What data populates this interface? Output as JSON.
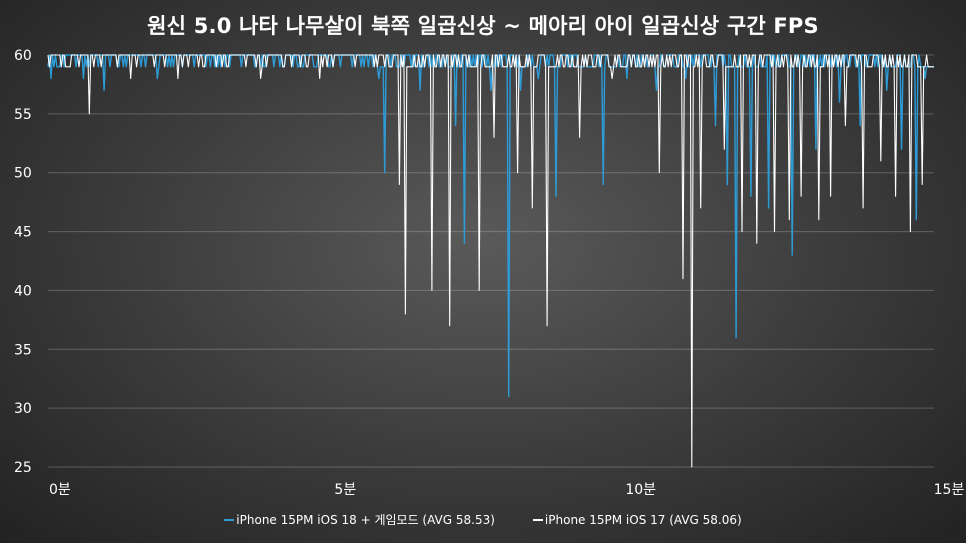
{
  "chart_data": {
    "type": "line",
    "title": "원신 5.0 나타 나무살이 북쪽 일곱신상 ~ 메아리 아이 일곱신상 구간 FPS",
    "xlabel": "",
    "ylabel": "",
    "xlim": [
      0,
      15
    ],
    "ylim": [
      25,
      60
    ],
    "x_ticks": [
      {
        "value": 0,
        "label": "0분"
      },
      {
        "value": 5,
        "label": "5분"
      },
      {
        "value": 10,
        "label": "10분"
      },
      {
        "value": 15,
        "label": "15분"
      }
    ],
    "y_ticks": [
      60,
      55,
      50,
      45,
      40,
      35,
      30,
      25
    ],
    "grid": "horizontal",
    "legend_position": "bottom",
    "series": [
      {
        "name": "iPhone 15PM iOS 18 + 게임모드 (AVG 58.53)",
        "color": "#2e9bd6",
        "baseline": 60,
        "sample_interval_min": 0.025,
        "dips": [
          {
            "x": 0.05,
            "y": 58
          },
          {
            "x": 0.1,
            "y": 59
          },
          {
            "x": 0.6,
            "y": 58
          },
          {
            "x": 0.95,
            "y": 57
          },
          {
            "x": 1.85,
            "y": 58
          },
          {
            "x": 2.75,
            "y": 59
          },
          {
            "x": 3.5,
            "y": 59
          },
          {
            "x": 4.5,
            "y": 59
          },
          {
            "x": 5.6,
            "y": 58
          },
          {
            "x": 5.7,
            "y": 50
          },
          {
            "x": 6.3,
            "y": 57
          },
          {
            "x": 6.9,
            "y": 54
          },
          {
            "x": 7.05,
            "y": 44
          },
          {
            "x": 7.5,
            "y": 57
          },
          {
            "x": 7.8,
            "y": 31
          },
          {
            "x": 8.0,
            "y": 57
          },
          {
            "x": 8.3,
            "y": 58
          },
          {
            "x": 8.6,
            "y": 48
          },
          {
            "x": 9.4,
            "y": 49
          },
          {
            "x": 9.8,
            "y": 58
          },
          {
            "x": 10.3,
            "y": 57
          },
          {
            "x": 10.8,
            "y": 58
          },
          {
            "x": 11.3,
            "y": 54
          },
          {
            "x": 11.5,
            "y": 49
          },
          {
            "x": 11.65,
            "y": 36
          },
          {
            "x": 11.9,
            "y": 48
          },
          {
            "x": 12.2,
            "y": 47
          },
          {
            "x": 12.6,
            "y": 43
          },
          {
            "x": 13.0,
            "y": 52
          },
          {
            "x": 13.4,
            "y": 56
          },
          {
            "x": 13.75,
            "y": 54
          },
          {
            "x": 14.2,
            "y": 57
          },
          {
            "x": 14.45,
            "y": 52
          },
          {
            "x": 14.7,
            "y": 46
          },
          {
            "x": 14.85,
            "y": 58
          }
        ]
      },
      {
        "name": "iPhone 15PM iOS 17 (AVG 58.06)",
        "color": "#ffffff",
        "baseline": 60,
        "sample_interval_min": 0.025,
        "dips": [
          {
            "x": 0.7,
            "y": 55
          },
          {
            "x": 1.4,
            "y": 58
          },
          {
            "x": 2.2,
            "y": 58
          },
          {
            "x": 3.6,
            "y": 58
          },
          {
            "x": 4.6,
            "y": 58
          },
          {
            "x": 5.95,
            "y": 49
          },
          {
            "x": 6.05,
            "y": 38
          },
          {
            "x": 6.5,
            "y": 40
          },
          {
            "x": 6.8,
            "y": 37
          },
          {
            "x": 7.3,
            "y": 40
          },
          {
            "x": 7.55,
            "y": 53
          },
          {
            "x": 7.95,
            "y": 50
          },
          {
            "x": 8.2,
            "y": 47
          },
          {
            "x": 8.45,
            "y": 37
          },
          {
            "x": 9.0,
            "y": 53
          },
          {
            "x": 9.55,
            "y": 58
          },
          {
            "x": 10.35,
            "y": 50
          },
          {
            "x": 10.75,
            "y": 41
          },
          {
            "x": 10.9,
            "y": 25
          },
          {
            "x": 11.05,
            "y": 47
          },
          {
            "x": 11.45,
            "y": 52
          },
          {
            "x": 11.75,
            "y": 45
          },
          {
            "x": 12.0,
            "y": 44
          },
          {
            "x": 12.3,
            "y": 45
          },
          {
            "x": 12.55,
            "y": 46
          },
          {
            "x": 12.75,
            "y": 48
          },
          {
            "x": 13.05,
            "y": 46
          },
          {
            "x": 13.25,
            "y": 48
          },
          {
            "x": 13.5,
            "y": 54
          },
          {
            "x": 13.8,
            "y": 47
          },
          {
            "x": 14.1,
            "y": 51
          },
          {
            "x": 14.35,
            "y": 48
          },
          {
            "x": 14.6,
            "y": 45
          },
          {
            "x": 14.8,
            "y": 49
          }
        ]
      }
    ]
  }
}
